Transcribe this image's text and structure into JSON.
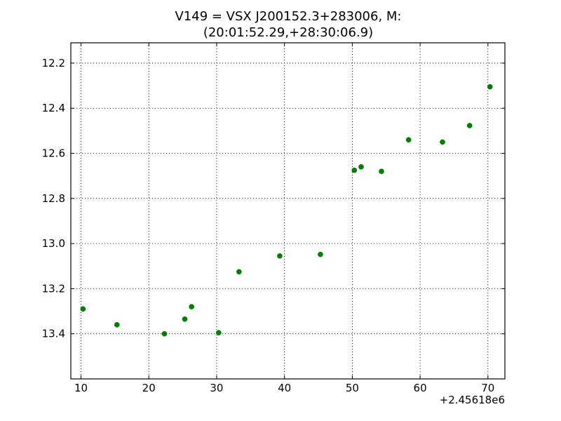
{
  "chart_data": {
    "type": "scatter",
    "title_lines": [
      "V149 = VSX J200152.3+283006, M:",
      "(20:01:52.29,+28:30:06.9)"
    ],
    "xlabel": "",
    "ylabel": "",
    "x_offset_label": "+2.45618e6",
    "xlim": [
      8.5,
      72.5
    ],
    "ylim": [
      12.11,
      13.6
    ],
    "y_inverted": true,
    "grid": true,
    "x_ticks": [
      {
        "value": 10,
        "label": "10"
      },
      {
        "value": 20,
        "label": "20"
      },
      {
        "value": 30,
        "label": "30"
      },
      {
        "value": 40,
        "label": "40"
      },
      {
        "value": 50,
        "label": "50"
      },
      {
        "value": 60,
        "label": "60"
      },
      {
        "value": 70,
        "label": "70"
      }
    ],
    "y_ticks": [
      {
        "value": 12.2,
        "label": "12.2"
      },
      {
        "value": 12.4,
        "label": "12.4"
      },
      {
        "value": 12.6,
        "label": "12.6"
      },
      {
        "value": 12.8,
        "label": "12.8"
      },
      {
        "value": 13.0,
        "label": "13.0"
      },
      {
        "value": 13.2,
        "label": "13.2"
      },
      {
        "value": 13.4,
        "label": "13.4"
      }
    ],
    "series": [
      {
        "color": "#007f00",
        "points": [
          {
            "x": 10.3,
            "y": 13.29
          },
          {
            "x": 15.3,
            "y": 13.36
          },
          {
            "x": 22.3,
            "y": 13.4
          },
          {
            "x": 25.3,
            "y": 13.335
          },
          {
            "x": 26.3,
            "y": 13.28
          },
          {
            "x": 30.3,
            "y": 13.395
          },
          {
            "x": 33.3,
            "y": 13.125
          },
          {
            "x": 39.3,
            "y": 13.055
          },
          {
            "x": 45.3,
            "y": 13.048
          },
          {
            "x": 50.3,
            "y": 12.675
          },
          {
            "x": 51.3,
            "y": 12.66
          },
          {
            "x": 54.3,
            "y": 12.68
          },
          {
            "x": 58.3,
            "y": 12.54
          },
          {
            "x": 63.3,
            "y": 12.55
          },
          {
            "x": 67.3,
            "y": 12.477
          },
          {
            "x": 70.3,
            "y": 12.305
          }
        ]
      }
    ]
  }
}
